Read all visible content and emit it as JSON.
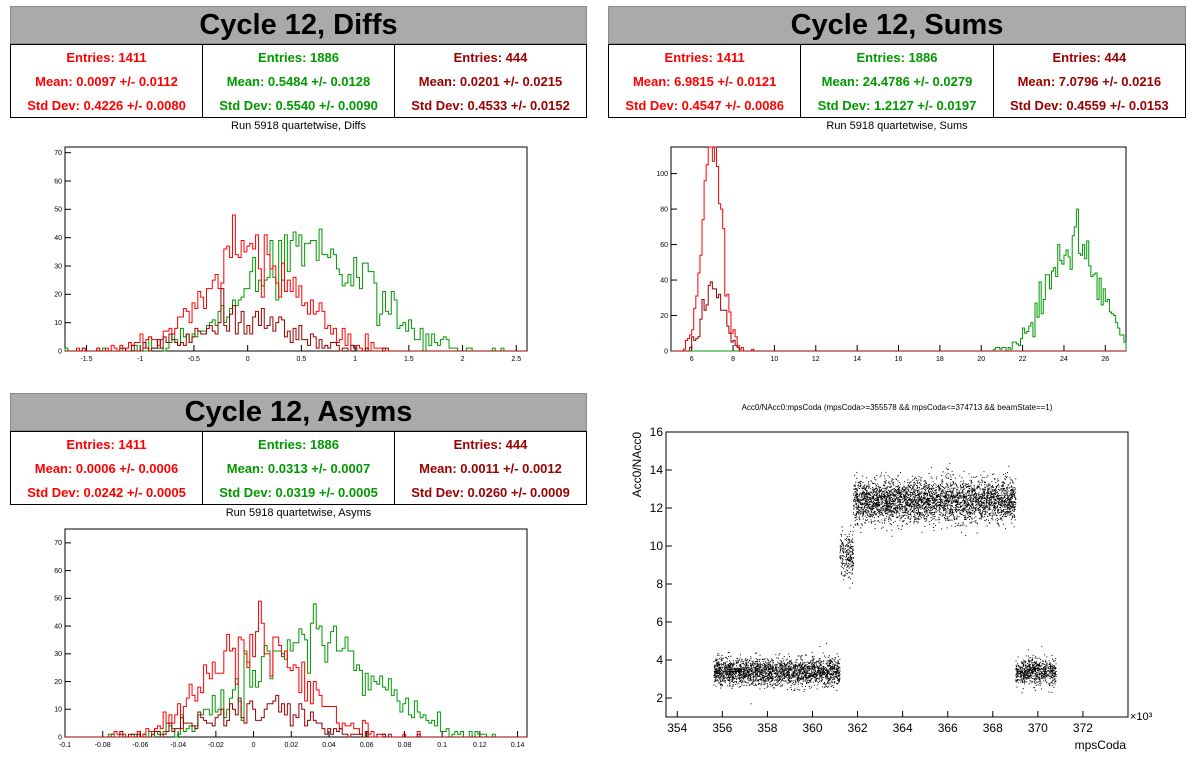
{
  "colors": {
    "red": "#ff0000",
    "green": "#009900",
    "darkred": "#990000",
    "header_bg": "#aaaaaa"
  },
  "panels": [
    {
      "title": "Cycle 12, Diffs",
      "subtitle": "Run 5918 quartetwise, Diffs",
      "stats": [
        {
          "entries": "Entries: 1411",
          "mean": "Mean: 0.0097 +/- 0.0112",
          "std": "Std Dev: 0.4226 +/- 0.0080",
          "color": "#ff0000"
        },
        {
          "entries": "Entries: 1886",
          "mean": "Mean: 0.5484 +/- 0.0128",
          "std": "Std Dev: 0.5540 +/- 0.0090",
          "color": "#009900"
        },
        {
          "entries": "Entries: 444",
          "mean": "Mean: 0.0201 +/- 0.0215",
          "std": "Std Dev: 0.4533 +/- 0.0152",
          "color": "#990000"
        }
      ]
    },
    {
      "title": "Cycle 12, Sums",
      "subtitle": "Run 5918 quartetwise, Sums",
      "stats": [
        {
          "entries": "Entries: 1411",
          "mean": "Mean: 6.9815 +/- 0.0121",
          "std": "Std Dev: 0.4547 +/- 0.0086",
          "color": "#ff0000"
        },
        {
          "entries": "Entries: 1886",
          "mean": "Mean: 24.4786 +/- 0.0279",
          "std": "Std Dev: 1.2127 +/- 0.0197",
          "color": "#009900"
        },
        {
          "entries": "Entries: 444",
          "mean": "Mean: 7.0796 +/- 0.0216",
          "std": "Std Dev: 0.4559 +/- 0.0153",
          "color": "#990000"
        }
      ]
    },
    {
      "title": "Cycle 12, Asyms",
      "subtitle": "Run 5918 quartetwise, Asyms",
      "stats": [
        {
          "entries": "Entries: 1411",
          "mean": "Mean: 0.0006 +/- 0.0006",
          "std": "Std Dev: 0.0242 +/- 0.0005",
          "color": "#ff0000"
        },
        {
          "entries": "Entries: 1886",
          "mean": "Mean: 0.0313 +/- 0.0007",
          "std": "Std Dev: 0.0319 +/- 0.0005",
          "color": "#009900"
        },
        {
          "entries": "Entries: 444",
          "mean": "Mean: 0.0011 +/- 0.0012",
          "std": "Std Dev: 0.0260 +/- 0.0009",
          "color": "#990000"
        }
      ]
    }
  ],
  "chart_data": [
    {
      "type": "histogram",
      "name": "diffs",
      "xlim": [
        -1.7,
        2.6
      ],
      "ylim": [
        0,
        72
      ],
      "xticks": [
        -1.5,
        -1,
        -0.5,
        0,
        0.5,
        1,
        1.5,
        2,
        2.5
      ],
      "yticks": [
        0,
        10,
        20,
        30,
        40,
        50,
        60,
        70
      ],
      "series": [
        {
          "color": "#009900",
          "mean": 0.5484,
          "std": 0.554,
          "entries": 1886
        },
        {
          "color": "#ff0000",
          "mean": 0.0097,
          "std": 0.4226,
          "entries": 1411
        },
        {
          "color": "#990000",
          "mean": 0.0201,
          "std": 0.4533,
          "entries": 444
        }
      ]
    },
    {
      "type": "histogram",
      "name": "sums",
      "xlim": [
        5,
        27
      ],
      "ylim": [
        0,
        115
      ],
      "xticks": [
        6,
        8,
        10,
        12,
        14,
        16,
        18,
        20,
        22,
        24,
        26
      ],
      "yticks": [
        0,
        20,
        40,
        60,
        80,
        100
      ],
      "series": [
        {
          "color": "#009900",
          "mean": 24.4786,
          "std": 1.2127,
          "entries": 1886
        },
        {
          "color": "#ff0000",
          "mean": 6.9815,
          "std": 0.4547,
          "entries": 1411
        },
        {
          "color": "#990000",
          "mean": 7.0796,
          "std": 0.4559,
          "entries": 444
        }
      ]
    },
    {
      "type": "histogram",
      "name": "asyms",
      "xlim": [
        -0.1,
        0.145
      ],
      "ylim": [
        0,
        75
      ],
      "xticks": [
        -0.1,
        -0.08,
        -0.06,
        -0.04,
        -0.02,
        0,
        0.02,
        0.04,
        0.06,
        0.08,
        0.1,
        0.12,
        0.14
      ],
      "yticks": [
        0,
        10,
        20,
        30,
        40,
        50,
        60,
        70
      ],
      "series": [
        {
          "color": "#009900",
          "mean": 0.0313,
          "std": 0.0319,
          "entries": 1886
        },
        {
          "color": "#ff0000",
          "mean": 0.0006,
          "std": 0.0242,
          "entries": 1411
        },
        {
          "color": "#990000",
          "mean": 0.0011,
          "std": 0.026,
          "entries": 444
        }
      ]
    },
    {
      "type": "scatter",
      "name": "acc0",
      "title": "Acc0/NAcc0:mpsCoda (mpsCoda>=355578 && mpsCoda<=374713 && beamState==1)",
      "xlabel": "mpsCoda",
      "ylabel": "Acc0/NAcc0",
      "xexponent": "×10³",
      "xlim": [
        353.5,
        374
      ],
      "ylim": [
        1,
        16
      ],
      "xticks": [
        354,
        356,
        358,
        360,
        362,
        364,
        366,
        368,
        370,
        372
      ],
      "yticks": [
        2,
        4,
        6,
        8,
        10,
        12,
        14,
        16
      ],
      "clusters": [
        {
          "x": [
            355.6,
            361.2
          ],
          "y_center": 3.4,
          "y_spread": 0.35,
          "points": 2400
        },
        {
          "x": [
            361.2,
            361.8
          ],
          "y_center": 9.6,
          "y_spread": 0.6,
          "points": 220
        },
        {
          "x": [
            361.8,
            369.0
          ],
          "y_center": 12.4,
          "y_spread": 0.55,
          "points": 3600
        },
        {
          "x": [
            369.0,
            370.8
          ],
          "y_center": 3.4,
          "y_spread": 0.35,
          "points": 700
        }
      ]
    }
  ]
}
